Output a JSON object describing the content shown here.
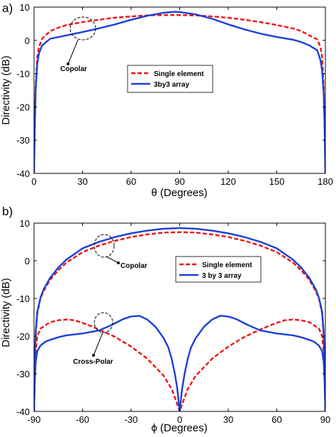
{
  "chart_data": [
    {
      "type": "line",
      "panel_label": "a)",
      "xlabel": "θ (Degrees)",
      "ylabel": "Directivity (dB)",
      "xlim": [
        0,
        180
      ],
      "ylim": [
        -40,
        10
      ],
      "xticks": [
        "0",
        "30",
        "60",
        "90",
        "120",
        "150",
        "180"
      ],
      "yticks": [
        "10",
        "0",
        "-10",
        "-20",
        "-30",
        "-40"
      ],
      "grid": false,
      "legend_position": "upper-right",
      "series": [
        {
          "name": "Single element",
          "color": "#ee1111",
          "style": "dashed",
          "points": [
            [
              0,
              -40
            ],
            [
              0.5,
              -25
            ],
            [
              1,
              -14
            ],
            [
              2,
              -5
            ],
            [
              3,
              -2
            ],
            [
              5,
              0.5
            ],
            [
              10,
              2.8
            ],
            [
              15,
              3.8
            ],
            [
              20,
              4.6
            ],
            [
              30,
              5.5
            ],
            [
              40,
              6.2
            ],
            [
              50,
              6.8
            ],
            [
              60,
              7.2
            ],
            [
              70,
              7.5
            ],
            [
              80,
              7.6
            ],
            [
              90,
              7.6
            ],
            [
              100,
              7.5
            ],
            [
              110,
              7.2
            ],
            [
              120,
              6.8
            ],
            [
              130,
              6.2
            ],
            [
              140,
              5.5
            ],
            [
              150,
              4.6
            ],
            [
              160,
              3.6
            ],
            [
              165,
              2.8
            ],
            [
              170,
              1.5
            ],
            [
              175,
              0.3
            ],
            [
              177,
              -2
            ],
            [
              178,
              -5
            ],
            [
              179,
              -14
            ],
            [
              179.5,
              -25
            ],
            [
              180,
              -40
            ]
          ]
        },
        {
          "name": "3by3 array",
          "color": "#1a3fd6",
          "style": "solid",
          "points": [
            [
              0,
              -40
            ],
            [
              0.5,
              -26
            ],
            [
              1,
              -15
            ],
            [
              2,
              -7
            ],
            [
              3,
              -4
            ],
            [
              5,
              -1.5
            ],
            [
              10,
              0.5
            ],
            [
              20,
              1.5
            ],
            [
              30,
              2.5
            ],
            [
              40,
              3.6
            ],
            [
              50,
              4.8
            ],
            [
              60,
              6.2
            ],
            [
              70,
              7.4
            ],
            [
              80,
              8.3
            ],
            [
              87,
              8.6
            ],
            [
              90,
              8.5
            ],
            [
              100,
              7.8
            ],
            [
              110,
              6.5
            ],
            [
              120,
              4.8
            ],
            [
              130,
              3.3
            ],
            [
              140,
              2
            ],
            [
              150,
              1
            ],
            [
              160,
              0.2
            ],
            [
              165,
              -0.5
            ],
            [
              170,
              -1.5
            ],
            [
              175,
              -3
            ],
            [
              177,
              -6
            ],
            [
              178,
              -9
            ],
            [
              179,
              -16
            ],
            [
              179.5,
              -26
            ],
            [
              180,
              -40
            ]
          ]
        }
      ],
      "annotations": [
        {
          "text": "Copolar",
          "x": 30,
          "y": 3
        }
      ]
    },
    {
      "type": "line",
      "panel_label": "b)",
      "xlabel": "ϕ (Degrees)",
      "ylabel": "Directivity (dB)",
      "xlim": [
        -90,
        90
      ],
      "ylim": [
        -40,
        10
      ],
      "xticks": [
        "-90",
        "-60",
        "-30",
        "0",
        "30",
        "60",
        "90"
      ],
      "yticks": [
        "10",
        "0",
        "-10",
        "-20",
        "-30",
        "-40"
      ],
      "grid": false,
      "legend_position": "upper-right",
      "series": [
        {
          "name": "Single element",
          "color": "#ee1111",
          "style": "dashed",
          "role": "copolar",
          "points": [
            [
              -90,
              -40
            ],
            [
              -89.5,
              -28
            ],
            [
              -89,
              -20
            ],
            [
              -88,
              -14
            ],
            [
              -86,
              -10
            ],
            [
              -84,
              -8
            ],
            [
              -80,
              -5
            ],
            [
              -75,
              -2.5
            ],
            [
              -70,
              -0.5
            ],
            [
              -60,
              2.3
            ],
            [
              -50,
              4
            ],
            [
              -40,
              5.3
            ],
            [
              -30,
              6.3
            ],
            [
              -20,
              7
            ],
            [
              -10,
              7.5
            ],
            [
              0,
              7.6
            ],
            [
              10,
              7.5
            ],
            [
              20,
              7
            ],
            [
              30,
              6.3
            ],
            [
              40,
              5.3
            ],
            [
              50,
              4
            ],
            [
              60,
              2.3
            ],
            [
              70,
              -0.5
            ],
            [
              75,
              -2.5
            ],
            [
              80,
              -5
            ],
            [
              84,
              -8
            ],
            [
              86,
              -10
            ],
            [
              88,
              -14
            ],
            [
              89,
              -20
            ],
            [
              89.5,
              -28
            ],
            [
              90,
              -40
            ]
          ]
        },
        {
          "name": "Single element",
          "color": "#ee1111",
          "style": "dashed",
          "role": "cross-polar",
          "points": [
            [
              -90,
              -40
            ],
            [
              -89.5,
              -30
            ],
            [
              -89,
              -24
            ],
            [
              -88,
              -20
            ],
            [
              -86,
              -18
            ],
            [
              -80,
              -16.3
            ],
            [
              -75,
              -15.8
            ],
            [
              -70,
              -15.6
            ],
            [
              -65,
              -15.8
            ],
            [
              -60,
              -16.5
            ],
            [
              -55,
              -17.3
            ],
            [
              -50,
              -18.2
            ],
            [
              -45,
              -19.2
            ],
            [
              -40,
              -20.2
            ],
            [
              -30,
              -22.8
            ],
            [
              -20,
              -26
            ],
            [
              -10,
              -30.5
            ],
            [
              -5,
              -34
            ],
            [
              -2,
              -37.5
            ],
            [
              0,
              -40
            ],
            [
              2,
              -37.5
            ],
            [
              5,
              -34
            ],
            [
              10,
              -30.5
            ],
            [
              20,
              -26
            ],
            [
              30,
              -22.8
            ],
            [
              40,
              -20.2
            ],
            [
              45,
              -19.2
            ],
            [
              50,
              -18.2
            ],
            [
              55,
              -17.3
            ],
            [
              60,
              -16.5
            ],
            [
              65,
              -15.8
            ],
            [
              70,
              -15.6
            ],
            [
              75,
              -15.8
            ],
            [
              80,
              -16.3
            ],
            [
              86,
              -18
            ],
            [
              88,
              -20
            ],
            [
              89,
              -24
            ],
            [
              89.5,
              -30
            ],
            [
              90,
              -40
            ]
          ]
        },
        {
          "name": "3 by 3 array",
          "color": "#1a3fd6",
          "style": "solid",
          "role": "copolar",
          "points": [
            [
              -90,
              -40
            ],
            [
              -89.5,
              -27
            ],
            [
              -89,
              -19
            ],
            [
              -88,
              -13.5
            ],
            [
              -86,
              -9.8
            ],
            [
              -84,
              -7.5
            ],
            [
              -80,
              -4.5
            ],
            [
              -75,
              -1.8
            ],
            [
              -70,
              0.3
            ],
            [
              -60,
              3.3
            ],
            [
              -50,
              5
            ],
            [
              -40,
              6.3
            ],
            [
              -30,
              7.3
            ],
            [
              -20,
              8
            ],
            [
              -10,
              8.5
            ],
            [
              0,
              8.7
            ],
            [
              10,
              8.5
            ],
            [
              20,
              8
            ],
            [
              30,
              7.3
            ],
            [
              40,
              6.3
            ],
            [
              50,
              5
            ],
            [
              60,
              3.3
            ],
            [
              70,
              0.3
            ],
            [
              75,
              -1.8
            ],
            [
              80,
              -4.5
            ],
            [
              84,
              -7.5
            ],
            [
              86,
              -9.8
            ],
            [
              88,
              -13.5
            ],
            [
              89,
              -19
            ],
            [
              89.5,
              -27
            ],
            [
              90,
              -40
            ]
          ]
        },
        {
          "name": "3 by 3 array",
          "color": "#1a3fd6",
          "style": "solid",
          "role": "cross-polar",
          "points": [
            [
              -90,
              -40
            ],
            [
              -89.5,
              -32
            ],
            [
              -89,
              -27
            ],
            [
              -88,
              -24
            ],
            [
              -86,
              -22.5
            ],
            [
              -83,
              -21.5
            ],
            [
              -80,
              -21
            ],
            [
              -75,
              -20.3
            ],
            [
              -70,
              -19.8
            ],
            [
              -60,
              -19.3
            ],
            [
              -50,
              -18.5
            ],
            [
              -45,
              -17.6
            ],
            [
              -40,
              -16.6
            ],
            [
              -35,
              -15.5
            ],
            [
              -30,
              -14.8
            ],
            [
              -25,
              -14.6
            ],
            [
              -20,
              -15.6
            ],
            [
              -15,
              -17.5
            ],
            [
              -10,
              -20.5
            ],
            [
              -7,
              -23
            ],
            [
              -5,
              -26
            ],
            [
              -3,
              -30
            ],
            [
              -1.5,
              -34
            ],
            [
              0,
              -40
            ],
            [
              1.5,
              -34
            ],
            [
              3,
              -30
            ],
            [
              5,
              -26
            ],
            [
              7,
              -23
            ],
            [
              10,
              -20.5
            ],
            [
              15,
              -17.5
            ],
            [
              20,
              -15.6
            ],
            [
              25,
              -14.6
            ],
            [
              30,
              -14.8
            ],
            [
              35,
              -15.5
            ],
            [
              40,
              -16.6
            ],
            [
              45,
              -17.6
            ],
            [
              50,
              -18.5
            ],
            [
              60,
              -19.3
            ],
            [
              70,
              -19.8
            ],
            [
              75,
              -20.3
            ],
            [
              80,
              -21
            ],
            [
              83,
              -21.5
            ],
            [
              86,
              -22.5
            ],
            [
              88,
              -24
            ],
            [
              89,
              -27
            ],
            [
              89.5,
              -32
            ],
            [
              90,
              -40
            ]
          ]
        }
      ],
      "annotations": [
        {
          "text": "Copolar",
          "x": -45,
          "y": 5
        },
        {
          "text": "Cross-Polar",
          "x": -47,
          "y": -17
        }
      ]
    }
  ]
}
